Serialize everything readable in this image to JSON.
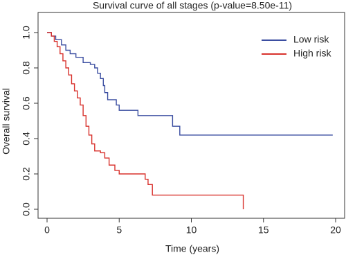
{
  "chart_data": {
    "type": "line",
    "title": "Survival curve of all stages (p-value=8.50e-11)",
    "x_label": "Time (years)",
    "y_label": "Overall survival",
    "xlim": [
      0,
      20
    ],
    "xticks": [
      0,
      5,
      10,
      15,
      20
    ],
    "ylim": [
      0,
      1
    ],
    "yticks": [
      {
        "value": 0,
        "label": "0.0"
      },
      {
        "value": 0.2,
        "label": "0.2"
      },
      {
        "value": 0.4,
        "label": "0.4"
      },
      {
        "value": 0.6,
        "label": "0.6"
      },
      {
        "value": 0.8,
        "label": "0.8"
      },
      {
        "value": 1,
        "label": "1.0"
      }
    ],
    "step": true,
    "legend": "upper right",
    "series": [
      {
        "name": "Low risk",
        "color": "#3b4ea1",
        "x": [
          0,
          0.3,
          0.6,
          1.0,
          1.3,
          1.6,
          2.0,
          2.5,
          3.0,
          3.3,
          3.5,
          3.7,
          3.9,
          4.0,
          4.2,
          4.8,
          5.0,
          6.3,
          8.7,
          9.2,
          19.8
        ],
        "values": [
          1.0,
          0.98,
          0.96,
          0.93,
          0.9,
          0.88,
          0.86,
          0.83,
          0.82,
          0.8,
          0.77,
          0.74,
          0.7,
          0.66,
          0.62,
          0.59,
          0.56,
          0.53,
          0.47,
          0.42,
          0.42
        ]
      },
      {
        "name": "High risk",
        "color": "#d8312c",
        "x": [
          0,
          0.3,
          0.5,
          0.7,
          0.9,
          1.1,
          1.3,
          1.5,
          1.7,
          1.9,
          2.1,
          2.3,
          2.5,
          2.7,
          2.9,
          3.1,
          3.3,
          3.7,
          4.0,
          4.3,
          4.7,
          5.0,
          6.8,
          7.0,
          7.3,
          13.6
        ],
        "values": [
          1.0,
          0.98,
          0.95,
          0.92,
          0.88,
          0.84,
          0.8,
          0.76,
          0.71,
          0.67,
          0.63,
          0.59,
          0.53,
          0.47,
          0.42,
          0.37,
          0.33,
          0.32,
          0.29,
          0.25,
          0.22,
          0.2,
          0.17,
          0.14,
          0.08,
          0.0
        ]
      }
    ]
  }
}
